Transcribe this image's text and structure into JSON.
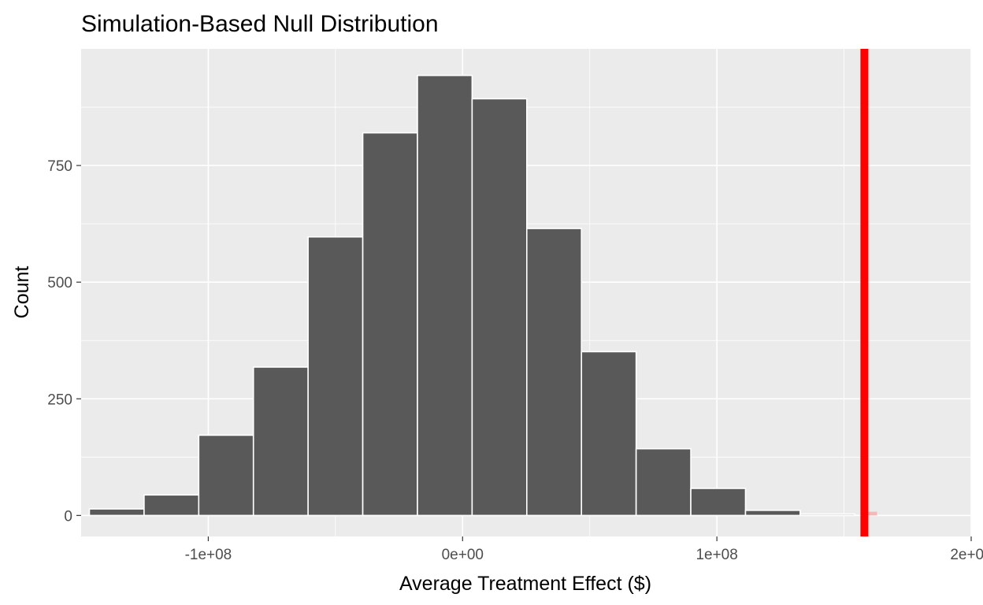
{
  "chart_data": {
    "type": "bar",
    "title": "Simulation-Based Null Distribution",
    "xlabel": "Average Treatment Effect ($)",
    "ylabel": "Count",
    "xlim": [
      -150000000,
      200000000
    ],
    "ylim": [
      -45,
      1000
    ],
    "x_ticks": [
      {
        "value": -100000000,
        "label": "-1e+08"
      },
      {
        "value": 0,
        "label": "0e+00"
      },
      {
        "value": 100000000,
        "label": "1e+08"
      },
      {
        "value": 200000000,
        "label": "2e+08"
      }
    ],
    "y_ticks": [
      {
        "value": 0,
        "label": "0"
      },
      {
        "value": 250,
        "label": "250"
      },
      {
        "value": 500,
        "label": "500"
      },
      {
        "value": 750,
        "label": "750"
      }
    ],
    "bin_width": 21500000,
    "bins": [
      {
        "center": -136000000,
        "count": 14
      },
      {
        "center": -114500000,
        "count": 44
      },
      {
        "center": -93000000,
        "count": 172
      },
      {
        "center": -71500000,
        "count": 318
      },
      {
        "center": -50000000,
        "count": 597
      },
      {
        "center": -28500000,
        "count": 820
      },
      {
        "center": -7000000,
        "count": 943
      },
      {
        "center": 14500000,
        "count": 893
      },
      {
        "center": 36000000,
        "count": 615
      },
      {
        "center": 57500000,
        "count": 351
      },
      {
        "center": 79000000,
        "count": 143
      },
      {
        "center": 100500000,
        "count": 58
      },
      {
        "center": 122000000,
        "count": 11
      },
      {
        "center": 143500000,
        "count": 3
      }
    ],
    "shaded_regions": [
      {
        "from": -138000000,
        "to": -132500000,
        "color": "#d9a5ab"
      },
      {
        "from": 158000000,
        "to": 163000000,
        "color": "#f4b8b8"
      }
    ],
    "observed_statistic": 158000000,
    "colors": {
      "panel": "#ebebeb",
      "grid": "#ffffff",
      "bar_fill": "#595959",
      "bar_stroke": "#ffffff",
      "observed_line": "#ff0000"
    },
    "grid": true
  }
}
